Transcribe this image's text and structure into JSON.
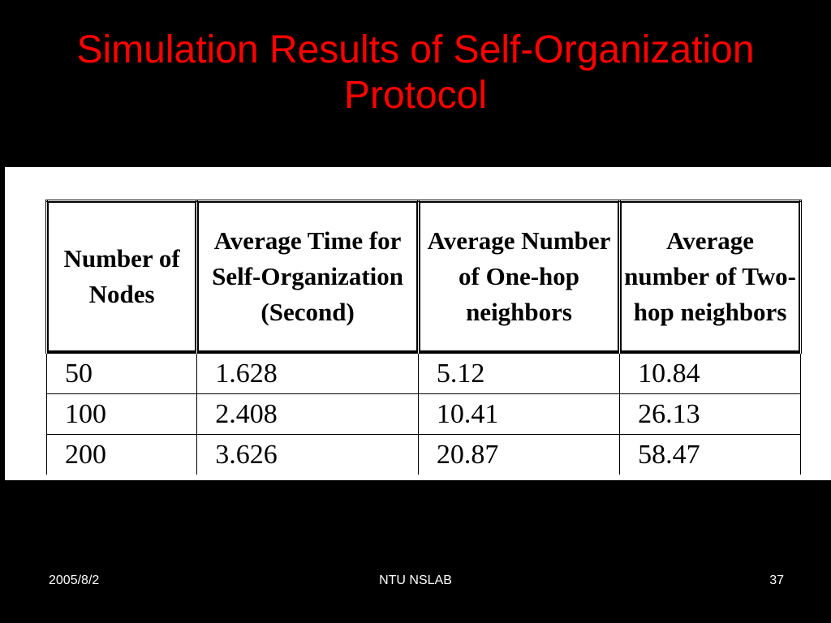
{
  "title": "Simulation Results of Self-Organization Protocol",
  "table": {
    "headers": [
      "Number of Nodes",
      "Average Time for Self-Organization (Second)",
      "Average Number of One-hop neighbors",
      "Average number of Two-hop neighbors"
    ],
    "rows": [
      [
        "50",
        "1.628",
        "5.12",
        "10.84"
      ],
      [
        "100",
        "2.408",
        "10.41",
        "26.13"
      ],
      [
        "200",
        "3.626",
        "20.87",
        "58.47"
      ]
    ]
  },
  "footer": {
    "date": "2005/8/2",
    "center": "NTU NSLAB",
    "page_number": "37"
  }
}
